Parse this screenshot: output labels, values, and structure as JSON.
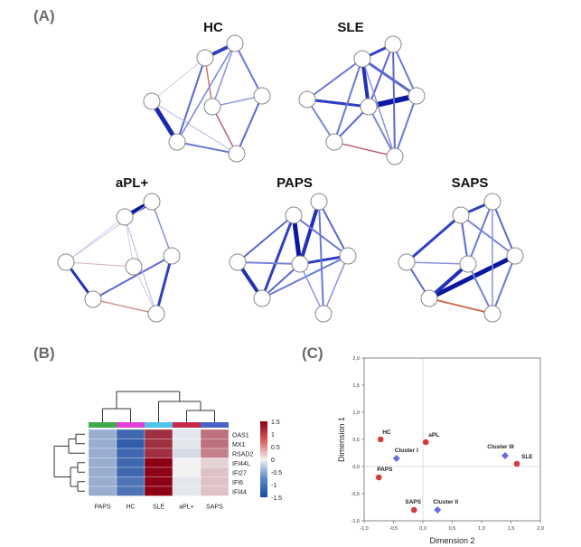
{
  "panels": {
    "a": "(A)",
    "b": "(B)",
    "c": "(C)"
  },
  "networks": [
    {
      "title": "HC"
    },
    {
      "title": "SLE"
    },
    {
      "title": "aPL+"
    },
    {
      "title": "PAPS"
    },
    {
      "title": "SAPS"
    }
  ],
  "heatmap": {
    "columns": [
      "PAPS",
      "HC",
      "SLE",
      "aPL+",
      "SAPS"
    ],
    "column_colors": [
      "#3cab4a",
      "#e040d8",
      "#4fc3e8",
      "#c8284a",
      "#4a62c8"
    ],
    "rows": [
      "OAS1",
      "MX1",
      "RSAD2",
      "IFI44L",
      "IFI27",
      "IFI6",
      "IFI44"
    ],
    "values": [
      [
        -0.6,
        -1.2,
        1.2,
        -0.1,
        0.8
      ],
      [
        -0.6,
        -1.3,
        1.2,
        -0.1,
        0.8
      ],
      [
        -0.6,
        -1.2,
        1.2,
        -0.2,
        0.7
      ],
      [
        -0.6,
        -1.2,
        1.5,
        0.0,
        0.2
      ],
      [
        -0.6,
        -1.2,
        1.5,
        0.0,
        0.3
      ],
      [
        -0.6,
        -1.1,
        1.5,
        -0.1,
        0.3
      ],
      [
        -0.6,
        -1.1,
        1.5,
        -0.1,
        0.3
      ]
    ],
    "legend_ticks": [
      "1.5",
      "1",
      "0.5",
      "0",
      "-0.5",
      "-1",
      "-1.5"
    ]
  },
  "chart_data": {
    "type": "scatter",
    "xlabel": "Dimension 2",
    "ylabel": "Dimension 1",
    "xlim": [
      -1.0,
      2.0
    ],
    "ylim": [
      -1.0,
      2.0
    ],
    "xticks": [
      "-1,0",
      "-0,5",
      "0,0",
      "0,5",
      "1,0",
      "1,5",
      "2,0"
    ],
    "yticks": [
      "2,0",
      "1,5",
      "1,0",
      "0,5",
      "0,0",
      "-0,5",
      "-1,0"
    ],
    "groups": [
      {
        "label": "HC",
        "x": -0.72,
        "y": 0.5,
        "marker": "circle"
      },
      {
        "label": "aPL",
        "x": 0.05,
        "y": 0.45,
        "marker": "circle"
      },
      {
        "label": "PAPS",
        "x": -0.75,
        "y": -0.2,
        "marker": "circle"
      },
      {
        "label": "SAPS",
        "x": -0.15,
        "y": -0.8,
        "marker": "circle"
      },
      {
        "label": "SLE",
        "x": 1.6,
        "y": 0.05,
        "marker": "circle"
      }
    ],
    "clusters": [
      {
        "label": "Cluster I",
        "x": -0.45,
        "y": 0.15,
        "marker": "diamond"
      },
      {
        "label": "Cluster II",
        "x": 0.25,
        "y": -0.8,
        "marker": "diamond"
      },
      {
        "label": "Cluster III",
        "x": 1.4,
        "y": 0.2,
        "marker": "diamond"
      }
    ],
    "colors": {
      "groups": "#d63a3a",
      "clusters": "#6a6ae0"
    }
  }
}
